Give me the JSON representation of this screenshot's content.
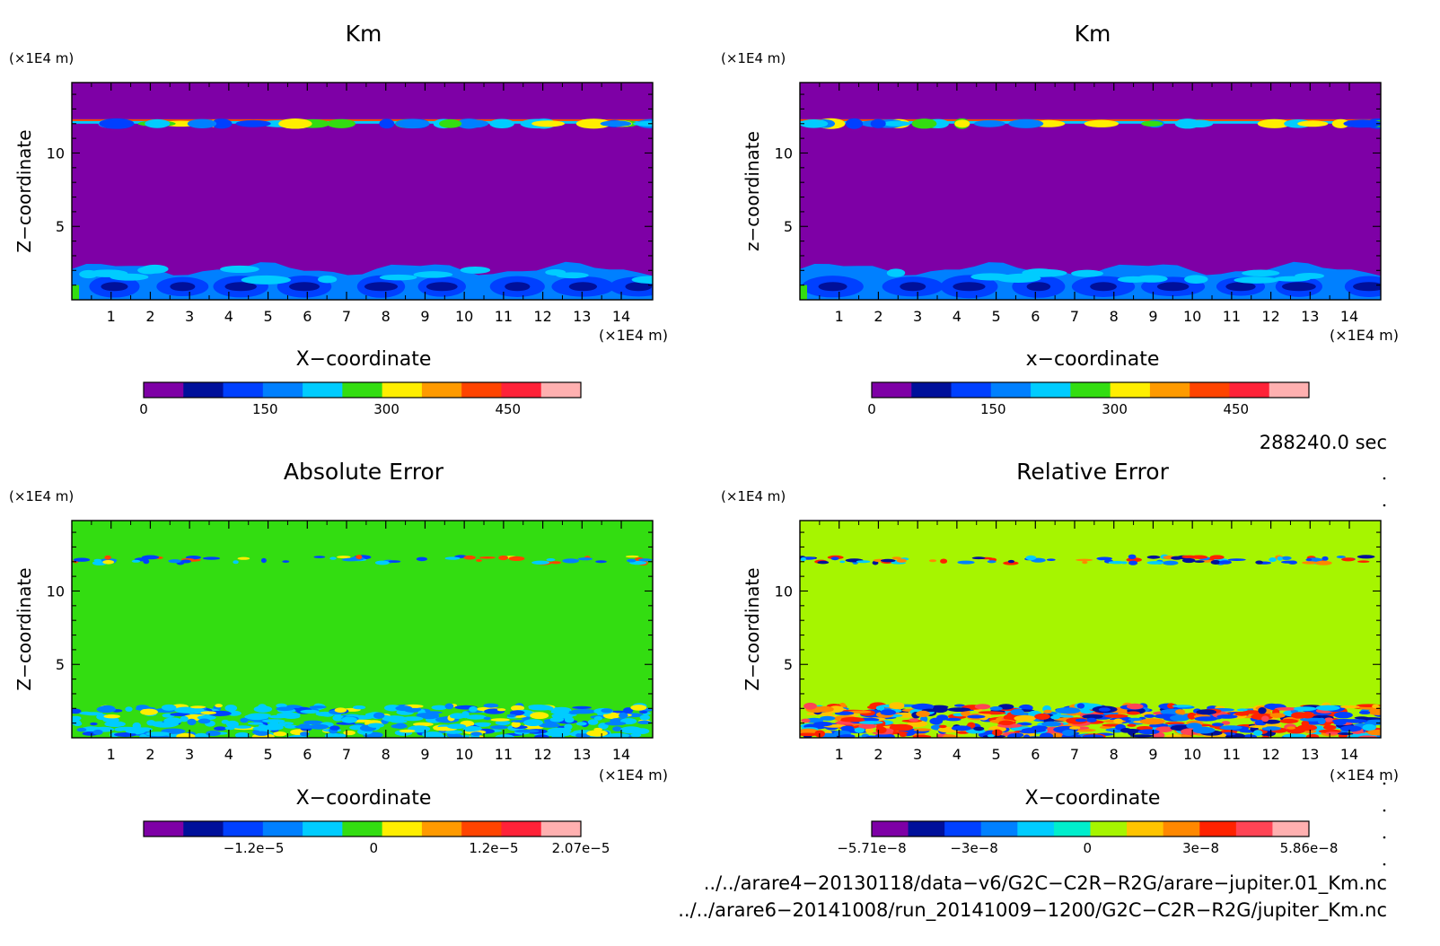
{
  "chart_data": [
    {
      "type": "heatmap",
      "title": "Km",
      "xlabel": "X−coordinate",
      "ylabel": "Z−coordinate",
      "x_unit": "(×1E4 m)",
      "y_unit": "(×1E4 m)",
      "x_ticks": [
        "1",
        "2",
        "3",
        "4",
        "5",
        "6",
        "7",
        "8",
        "9",
        "10",
        "11",
        "12",
        "13",
        "14"
      ],
      "y_ticks": [
        "5",
        "10"
      ],
      "xlim": [
        0,
        14.8
      ],
      "ylim": [
        0,
        14.8
      ],
      "field": "km",
      "colorbar": {
        "colors": [
          "#7e00a6",
          "#00109a",
          "#0040ff",
          "#0080ff",
          "#00ccff",
          "#33dd11",
          "#ffee00",
          "#ff9a00",
          "#ff4400",
          "#ff2238",
          "#ffb0b0"
        ],
        "labels": [
          {
            "value": 0,
            "text": "0"
          },
          {
            "value": 150,
            "text": "150"
          },
          {
            "value": 300,
            "text": "300"
          },
          {
            "value": 450,
            "text": "450"
          }
        ],
        "range": [
          0,
          540
        ]
      }
    },
    {
      "type": "heatmap",
      "title": "Km",
      "xlabel": "x−coordinate",
      "ylabel": "z−coordinate",
      "x_unit": "(×1E4 m)",
      "y_unit": "(×1E4 m)",
      "x_ticks": [
        "1",
        "2",
        "3",
        "4",
        "5",
        "6",
        "7",
        "8",
        "9",
        "10",
        "11",
        "12",
        "13",
        "14"
      ],
      "y_ticks": [
        "5",
        "10"
      ],
      "xlim": [
        0,
        14.8
      ],
      "ylim": [
        0,
        14.8
      ],
      "field": "km",
      "colorbar": {
        "colors": [
          "#7e00a6",
          "#00109a",
          "#0040ff",
          "#0080ff",
          "#00ccff",
          "#33dd11",
          "#ffee00",
          "#ff9a00",
          "#ff4400",
          "#ff2238",
          "#ffb0b0"
        ],
        "labels": [
          {
            "value": 0,
            "text": "0"
          },
          {
            "value": 150,
            "text": "150"
          },
          {
            "value": 300,
            "text": "300"
          },
          {
            "value": 450,
            "text": "450"
          }
        ],
        "range": [
          0,
          540
        ]
      }
    },
    {
      "type": "heatmap",
      "title": "Absolute Error",
      "xlabel": "X−coordinate",
      "ylabel": "Z−coordinate",
      "x_unit": "(×1E4 m)",
      "y_unit": "(×1E4 m)",
      "x_ticks": [
        "1",
        "2",
        "3",
        "4",
        "5",
        "6",
        "7",
        "8",
        "9",
        "10",
        "11",
        "12",
        "13",
        "14"
      ],
      "y_ticks": [
        "5",
        "10"
      ],
      "xlim": [
        0,
        14.8
      ],
      "ylim": [
        0,
        14.8
      ],
      "field": "abs",
      "colorbar": {
        "colors": [
          "#7e00a6",
          "#00109a",
          "#0040ff",
          "#0080ff",
          "#00ccff",
          "#33dd11",
          "#ffee00",
          "#ff9a00",
          "#ff4400",
          "#ff2238",
          "#ffb0b0"
        ],
        "labels": [
          {
            "value": -1.2e-05,
            "text": "−1.2e−5"
          },
          {
            "value": 0,
            "text": "0"
          },
          {
            "value": 1.2e-05,
            "text": "1.2e−5"
          },
          {
            "value": 2.07e-05,
            "text": "2.07e−5"
          }
        ],
        "range": [
          -2.3e-05,
          2.07e-05
        ]
      }
    },
    {
      "type": "heatmap",
      "title": "Relative Error",
      "xlabel": "X−coordinate",
      "ylabel": "Z−coordinate",
      "x_unit": "(×1E4 m)",
      "y_unit": "(×1E4 m)",
      "x_ticks": [
        "1",
        "2",
        "3",
        "4",
        "5",
        "6",
        "7",
        "8",
        "9",
        "10",
        "11",
        "12",
        "13",
        "14"
      ],
      "y_ticks": [
        "5",
        "10"
      ],
      "xlim": [
        0,
        14.8
      ],
      "ylim": [
        0,
        14.8
      ],
      "field": "rel",
      "colorbar": {
        "colors": [
          "#7e00a6",
          "#00109a",
          "#0040ff",
          "#0080ff",
          "#00ccff",
          "#00eecc",
          "#a6f500",
          "#ffc400",
          "#ff8800",
          "#ff2200",
          "#ff4455",
          "#ffb0b0"
        ],
        "labels": [
          {
            "value": -5.71e-08,
            "text": "−5.71e−8"
          },
          {
            "value": -3e-08,
            "text": "−3e−8"
          },
          {
            "value": 0,
            "text": "0"
          },
          {
            "value": 3e-08,
            "text": "3e−8"
          },
          {
            "value": 5.86e-08,
            "text": "5.86e−8"
          }
        ],
        "range": [
          -5.71e-08,
          5.86e-08
        ]
      }
    }
  ],
  "footer": {
    "time_label": "288240.0 sec",
    "file1": "../../arare4−20130118/data−v6/G2C−C2R−R2G/arare−jupiter.01_Km.nc",
    "file2": "../../arare6−20141008/run_20141009−1200/G2C−C2R−R2G/jupiter_Km.nc"
  }
}
